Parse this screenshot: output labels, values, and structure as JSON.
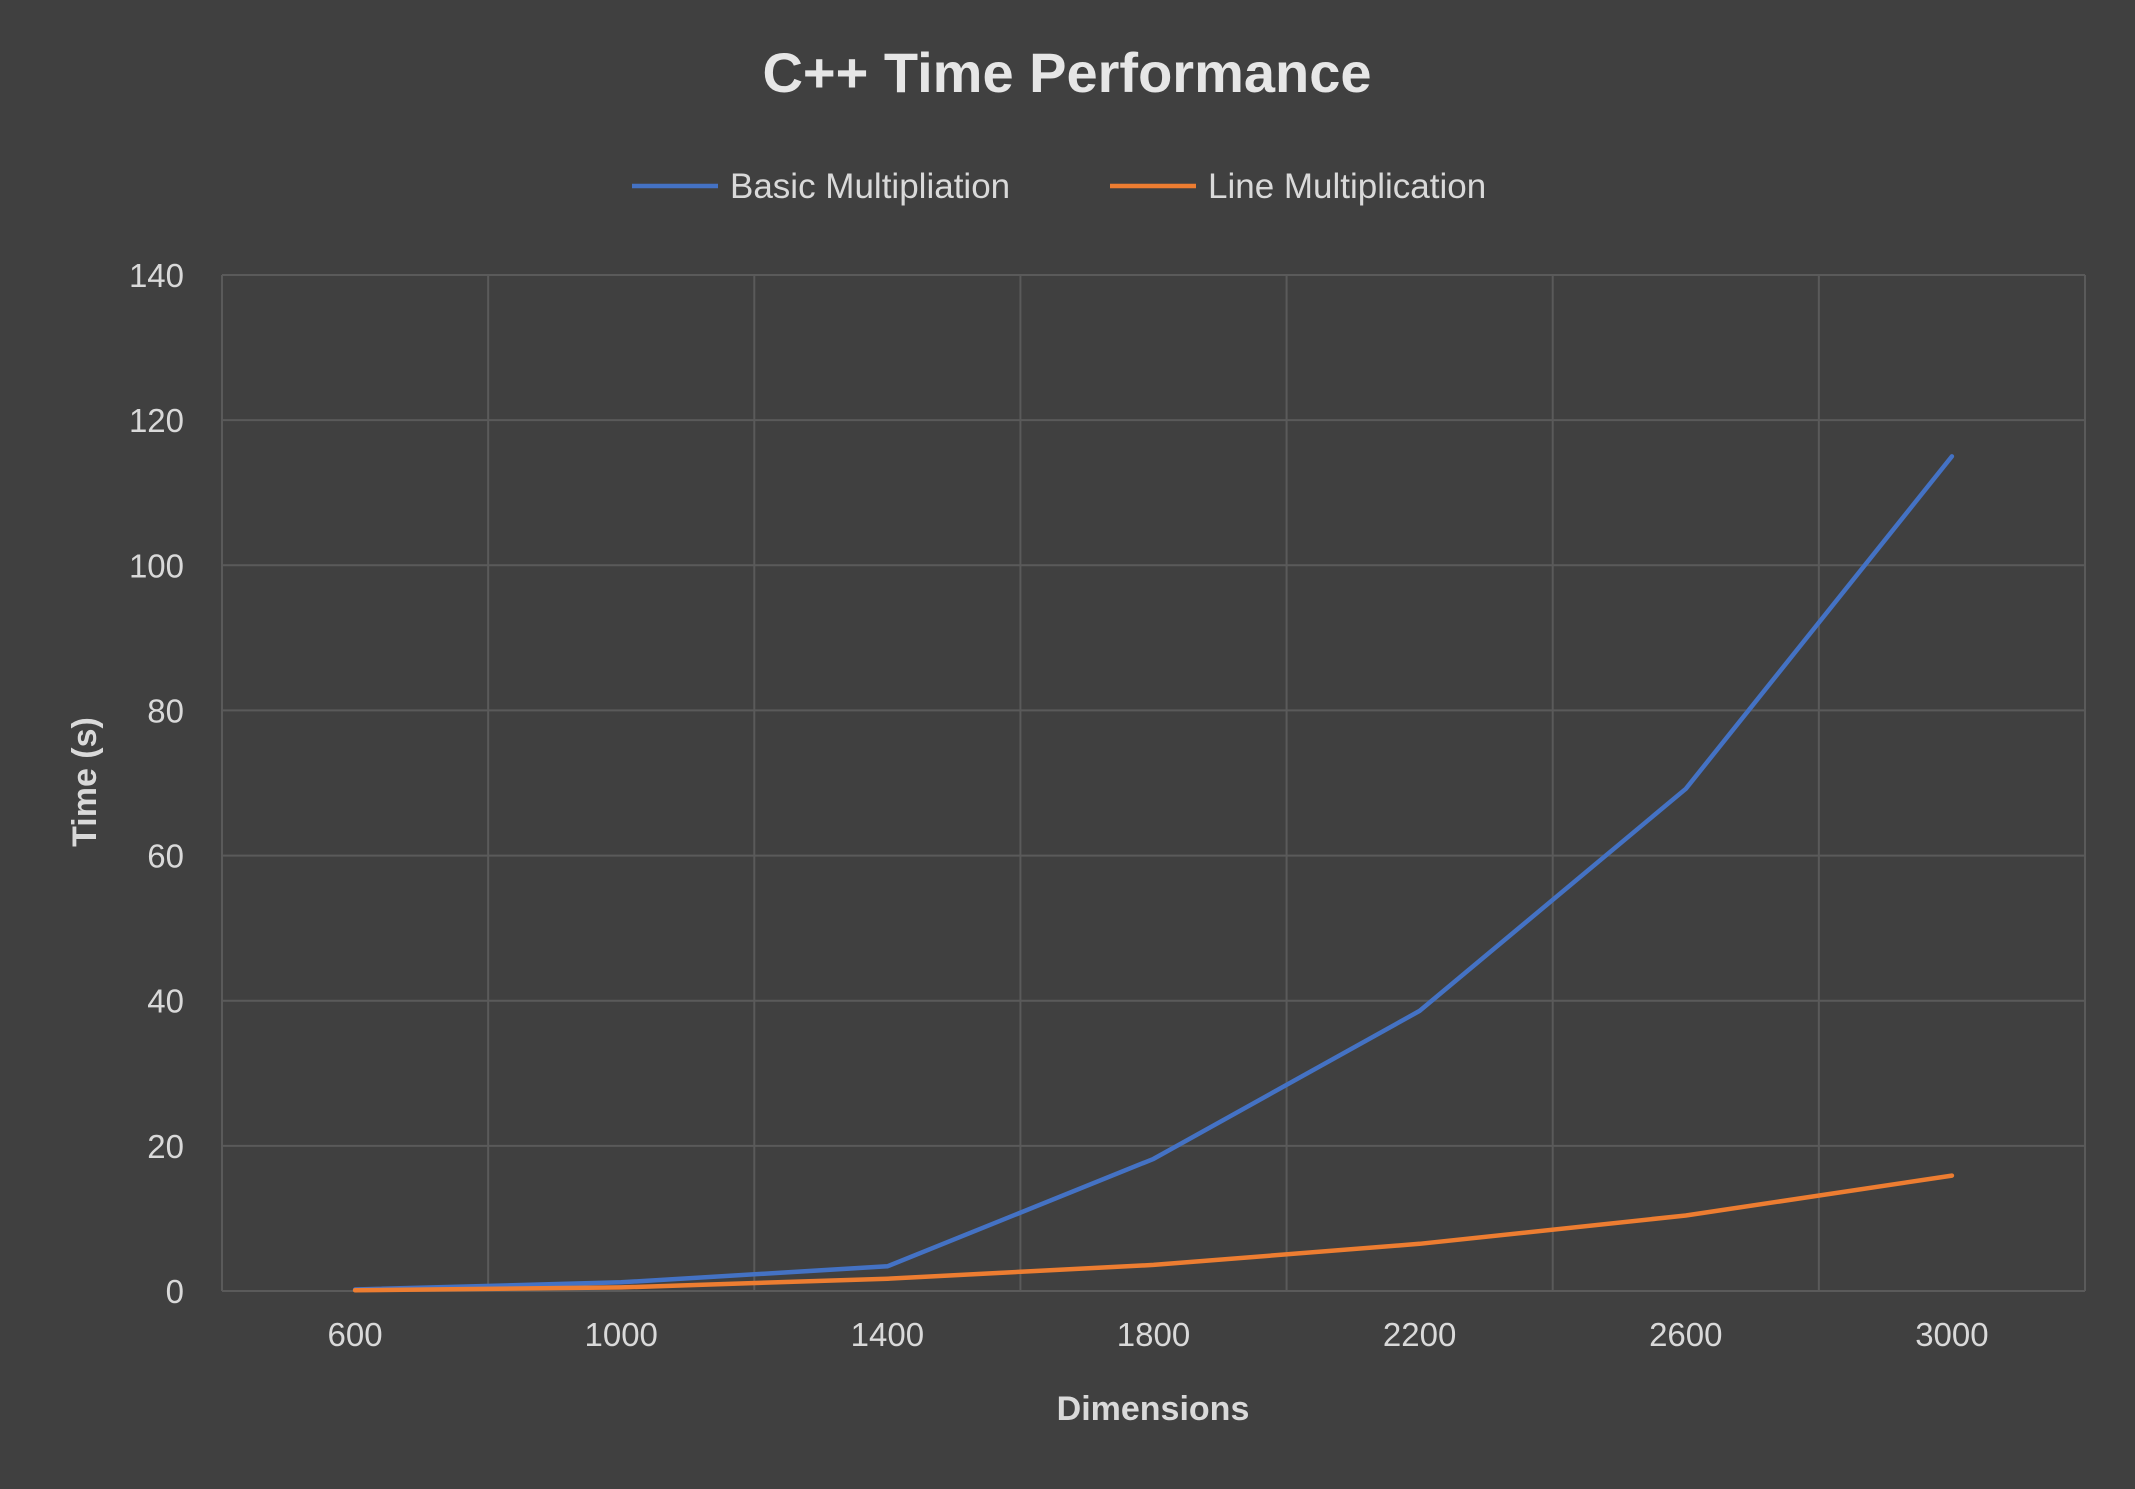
{
  "colors": {
    "background": "#404040",
    "grid": "#5a5a5a",
    "text": "#d9d9d9",
    "title": "#e6e6e6"
  },
  "chart_data": {
    "type": "line",
    "title": "C++ Time Performance",
    "xlabel": "Dimensions",
    "ylabel": "Time (s)",
    "categories": [
      "600",
      "1000",
      "1400",
      "1800",
      "2200",
      "2600",
      "3000"
    ],
    "ylim": [
      0,
      140
    ],
    "yticks": [
      "0",
      "20",
      "40",
      "60",
      "80",
      "100",
      "120",
      "140"
    ],
    "grid": true,
    "legend_position": "top",
    "series": [
      {
        "name": "Basic Multipliation",
        "color": "#4472c4",
        "values": [
          0.2,
          1.2,
          3.4,
          18.2,
          38.6,
          69.2,
          115.0
        ]
      },
      {
        "name": "Line Multiplication",
        "color": "#ed7d31",
        "values": [
          0.1,
          0.5,
          1.7,
          3.6,
          6.5,
          10.4,
          15.9
        ]
      }
    ]
  }
}
